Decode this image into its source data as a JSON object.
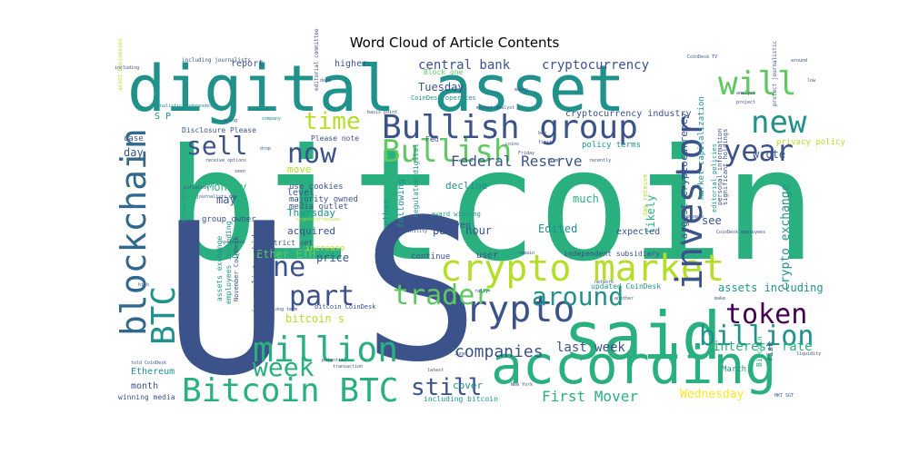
{
  "chart_data": {
    "type": "wordcloud",
    "title": "Word Cloud of Article Contents",
    "palette": [
      "#440154",
      "#3b528b",
      "#21918c",
      "#2ab07f",
      "#5ec962",
      "#b5de2b",
      "#fde725"
    ],
    "words": [
      {
        "text": "bitcoin",
        "weight": 100,
        "color": "#2ab07f"
      },
      {
        "text": "U",
        "weight": 95,
        "color": "#3b528b"
      },
      {
        "text": "S",
        "weight": 95,
        "color": "#3b528b"
      },
      {
        "text": "digital asset",
        "weight": 60,
        "color": "#21918c"
      },
      {
        "text": "according",
        "weight": 55,
        "color": "#2ab07f"
      },
      {
        "text": "said",
        "weight": 54,
        "color": "#2ab07f"
      },
      {
        "text": "blockchain",
        "weight": 42,
        "color": "#31688e"
      },
      {
        "text": "crypto market",
        "weight": 40,
        "color": "#b5de2b"
      },
      {
        "text": "Bullish group",
        "weight": 38,
        "color": "#3b528b"
      },
      {
        "text": "crypto",
        "weight": 36,
        "color": "#3b528b"
      },
      {
        "text": "investor",
        "weight": 36,
        "color": "#3b528b"
      },
      {
        "text": "Bitcoin BTC",
        "weight": 35,
        "color": "#2ab07f"
      },
      {
        "text": "million",
        "weight": 34,
        "color": "#2ab07f"
      },
      {
        "text": "will",
        "weight": 33,
        "color": "#5ec962"
      },
      {
        "text": "token",
        "weight": 30,
        "color": "#440154"
      },
      {
        "text": "new",
        "weight": 30,
        "color": "#21918c"
      },
      {
        "text": "year",
        "weight": 30,
        "color": "#3b528b"
      },
      {
        "text": "Bullish",
        "weight": 30,
        "color": "#5ec962"
      },
      {
        "text": "BTC",
        "weight": 29,
        "color": "#21918c"
      },
      {
        "text": "around",
        "weight": 28,
        "color": "#21918c"
      },
      {
        "text": "trader",
        "weight": 28,
        "color": "#5ec962"
      },
      {
        "text": "part",
        "weight": 28,
        "color": "#3b528b"
      },
      {
        "text": "billion",
        "weight": 28,
        "color": "#21918c"
      },
      {
        "text": "one",
        "weight": 27,
        "color": "#3b528b"
      },
      {
        "text": "now",
        "weight": 27,
        "color": "#3b528b"
      },
      {
        "text": "week",
        "weight": 26,
        "color": "#2ab07f"
      },
      {
        "text": "still",
        "weight": 24,
        "color": "#3b528b"
      },
      {
        "text": "sell",
        "weight": 24,
        "color": "#3b528b"
      },
      {
        "text": "time",
        "weight": 23,
        "color": "#b5de2b"
      },
      {
        "text": "companies",
        "weight": 18,
        "color": "#3b528b"
      },
      {
        "text": "First Mover",
        "weight": 16,
        "color": "#2ab07f"
      },
      {
        "text": "interest rate",
        "weight": 14,
        "color": "#2ab07f"
      },
      {
        "text": "last week",
        "weight": 14,
        "color": "#3b528b"
      },
      {
        "text": "crypto exchange",
        "weight": 13,
        "color": "#21918c"
      },
      {
        "text": "cryptocurrency",
        "weight": 14,
        "color": "#3b528b"
      },
      {
        "text": "central bank",
        "weight": 14,
        "color": "#3b528b"
      },
      {
        "text": "Federal Reserve",
        "weight": 14,
        "color": "#3b528b"
      },
      {
        "text": "largest cryptocurrency",
        "weight": 12,
        "color": "#3b528b"
      },
      {
        "text": "Wednesday",
        "weight": 13,
        "color": "#fde725"
      },
      {
        "text": "assets including",
        "weight": 12,
        "color": "#21918c"
      },
      {
        "text": "Tuesday",
        "weight": 12,
        "color": "#3b528b"
      },
      {
        "text": "Monday",
        "weight": 12,
        "color": "#2ab07f"
      },
      {
        "text": "Thursday",
        "weight": 11,
        "color": "#21918c"
      },
      {
        "text": "past hour",
        "weight": 12,
        "color": "#3b528b"
      },
      {
        "text": "decline",
        "weight": 11,
        "color": "#21918c"
      },
      {
        "text": "Edited",
        "weight": 12,
        "color": "#21918c"
      },
      {
        "text": "much",
        "weight": 12,
        "color": "#2ab07f"
      },
      {
        "text": "likely",
        "weight": 12,
        "color": "#2ab07f"
      },
      {
        "text": "expected",
        "weight": 10,
        "color": "#3b528b"
      },
      {
        "text": "see",
        "weight": 12,
        "color": "#3b528b"
      },
      {
        "text": "wrote",
        "weight": 12,
        "color": "#3b528b"
      },
      {
        "text": "price",
        "weight": 12,
        "color": "#3b528b"
      },
      {
        "text": "Ether ETH",
        "weight": 11,
        "color": "#5ec962"
      },
      {
        "text": "bitcoin s",
        "weight": 11,
        "color": "#b5de2b"
      },
      {
        "text": "cover",
        "weight": 11,
        "color": "#21918c"
      },
      {
        "text": "cryptocurrency industry",
        "weight": 10,
        "color": "#3b528b"
      },
      {
        "text": "policy terms",
        "weight": 9,
        "color": "#21918c"
      },
      {
        "text": "privacy policy",
        "weight": 9,
        "color": "#b5de2b"
      },
      {
        "text": "market capitalization",
        "weight": 9,
        "color": "#21918c"
      },
      {
        "text": "Ethereum",
        "weight": 10,
        "color": "#21918c"
      },
      {
        "text": "month",
        "weight": 10,
        "color": "#3b528b"
      },
      {
        "text": "winning media",
        "weight": 8,
        "color": "#3b528b"
      },
      {
        "text": "March",
        "weight": 9,
        "color": "#21918c"
      },
      {
        "text": "risk",
        "weight": 9,
        "color": "#3b528b"
      },
      {
        "text": "even",
        "weight": 10,
        "color": "#3b528b"
      },
      {
        "text": "following",
        "weight": 10,
        "color": "#21918c"
      },
      {
        "text": "ether",
        "weight": 10,
        "color": "#21918c"
      },
      {
        "text": "acquired",
        "weight": 11,
        "color": "#3b528b"
      },
      {
        "text": "may",
        "weight": 12,
        "color": "#3b528b"
      },
      {
        "text": "day",
        "weight": 12,
        "color": "#3b528b"
      },
      {
        "text": "case",
        "weight": 9,
        "color": "#3b528b"
      },
      {
        "text": "level",
        "weight": 10,
        "color": "#3b528b"
      },
      {
        "text": "move",
        "weight": 11,
        "color": "#b5de2b"
      },
      {
        "text": "Bitcoin",
        "weight": 8,
        "color": "#2ab07f"
      },
      {
        "text": "report",
        "weight": 10,
        "color": "#3b528b"
      },
      {
        "text": "higher",
        "weight": 10,
        "color": "#3b528b"
      },
      {
        "text": "user",
        "weight": 10,
        "color": "#3b528b"
      },
      {
        "text": "continue",
        "weight": 9,
        "color": "#3b528b"
      },
      {
        "text": "increase",
        "weight": 9,
        "color": "#b5de2b"
      },
      {
        "text": "variety",
        "weight": 9,
        "color": "#2ab07f"
      },
      {
        "text": "strict set",
        "weight": 8,
        "color": "#3b528b"
      },
      {
        "text": "media outlet",
        "weight": 9,
        "color": "#3b528b"
      },
      {
        "text": "majority owned",
        "weight": 9,
        "color": "#3b528b"
      },
      {
        "text": "use cookies",
        "weight": 9,
        "color": "#3b528b"
      },
      {
        "text": "group owner",
        "weight": 9,
        "color": "#3b528b"
      },
      {
        "text": "Please note",
        "weight": 8,
        "color": "#3b528b"
      },
      {
        "text": "Disclosure Please",
        "weight": 8,
        "color": "#3b528b"
      },
      {
        "text": "Block one",
        "weight": 8,
        "color": "#5ec962"
      },
      {
        "text": "CoinDesk operates",
        "weight": 7,
        "color": "#21918c"
      },
      {
        "text": "independent subsidiary",
        "weight": 8,
        "color": "#3b528b"
      },
      {
        "text": "updated CoinDesk",
        "weight": 8,
        "color": "#21918c"
      },
      {
        "text": "including bitcoin",
        "weight": 8,
        "color": "#21918c"
      },
      {
        "text": "journalists abide",
        "weight": 9,
        "color": "#3b528b"
      },
      {
        "text": "employees including",
        "weight": 8,
        "color": "#21918c"
      },
      {
        "text": "assets exchange",
        "weight": 8,
        "color": "#21918c"
      },
      {
        "text": "November CoinDesk",
        "weight": 7,
        "color": "#3b528b"
      },
      {
        "text": "bitcoin CoinDesk",
        "weight": 7,
        "color": "#3b528b"
      },
      {
        "text": "regulated digital",
        "weight": 8,
        "color": "#21918c"
      },
      {
        "text": "award winning",
        "weight": 7,
        "color": "#21918c"
      },
      {
        "text": "day receive",
        "weight": 7,
        "color": "#b5de2b"
      },
      {
        "text": "editorial policies",
        "weight": 7,
        "color": "#21918c"
      },
      {
        "text": "personal information",
        "weight": 7,
        "color": "#3b528b"
      },
      {
        "text": "significant holdings",
        "weight": 7,
        "color": "#3b528b"
      },
      {
        "text": "protect journalistic",
        "weight": 6,
        "color": "#3b528b"
      },
      {
        "text": "S P",
        "weight": 10,
        "color": "#21918c"
      },
      {
        "text": "Fed",
        "weight": 8,
        "color": "#3b528b"
      },
      {
        "text": "asset businesses",
        "weight": 6,
        "color": "#b5de2b"
      },
      {
        "text": "journalistic independence",
        "weight": 5,
        "color": "#21918c"
      },
      {
        "text": "editorial committee",
        "weight": 6,
        "color": "#3b528b"
      },
      {
        "text": "including journalists",
        "weight": 6,
        "color": "#3b528b"
      },
      {
        "text": "receive options",
        "weight": 5,
        "color": "#3b528b"
      },
      {
        "text": "journalists may",
        "weight": 5,
        "color": "#3b528b"
      },
      {
        "text": "inflation",
        "weight": 5,
        "color": "#3b528b"
      },
      {
        "text": "bitcoin price",
        "weight": 5,
        "color": "#21918c"
      },
      {
        "text": "cryptocurrencies",
        "weight": 5,
        "color": "#b5de2b"
      },
      {
        "text": "company",
        "weight": 5,
        "color": "#21918c"
      },
      {
        "text": "CoinDesk TV",
        "weight": 5,
        "color": "#3b528b"
      },
      {
        "text": "CoinDesk employees",
        "weight": 5,
        "color": "#3b528b"
      },
      {
        "text": "volatility",
        "weight": 5,
        "color": "#3b528b"
      },
      {
        "text": "long term",
        "weight": 5,
        "color": "#3b528b"
      },
      {
        "text": "New York",
        "weight": 5,
        "color": "#3b528b"
      },
      {
        "text": "transaction",
        "weight": 5,
        "color": "#3b528b"
      },
      {
        "text": "potential",
        "weight": 5,
        "color": "#3b528b"
      },
      {
        "text": "told CoinDesk",
        "weight": 5,
        "color": "#3b528b"
      },
      {
        "text": "liquidity",
        "weight": 5,
        "color": "#3b528b"
      },
      {
        "text": "HKT SGT",
        "weight": 5,
        "color": "#3b528b"
      },
      {
        "text": "analyst",
        "weight": 5,
        "color": "#3b528b"
      },
      {
        "text": "project",
        "weight": 5,
        "color": "#3b528b"
      },
      {
        "text": "network",
        "weight": 5,
        "color": "#3b528b"
      },
      {
        "text": "recently",
        "weight": 5,
        "color": "#3b528b"
      },
      {
        "text": "people",
        "weight": 5,
        "color": "#3b528b"
      },
      {
        "text": "market analyst",
        "weight": 5,
        "color": "#3b528b"
      },
      {
        "text": "basis point",
        "weight": 5,
        "color": "#3b528b"
      },
      {
        "text": "rally",
        "weight": 5,
        "color": "#3b528b"
      },
      {
        "text": "protocol",
        "weight": 5,
        "color": "#3b528b"
      },
      {
        "text": "April",
        "weight": 5,
        "color": "#3b528b"
      },
      {
        "text": "June",
        "weight": 5,
        "color": "#3b528b"
      },
      {
        "text": "first",
        "weight": 5,
        "color": "#3b528b"
      },
      {
        "text": "money",
        "weight": 5,
        "color": "#3b528b"
      },
      {
        "text": "remain",
        "weight": 5,
        "color": "#3b528b"
      },
      {
        "text": "coins",
        "weight": 5,
        "color": "#3b528b"
      },
      {
        "text": "high",
        "weight": 5,
        "color": "#3b528b"
      },
      {
        "text": "going",
        "weight": 5,
        "color": "#3b528b"
      },
      {
        "text": "seen",
        "weight": 5,
        "color": "#3b528b"
      },
      {
        "text": "drop",
        "weight": 5,
        "color": "#3b528b"
      },
      {
        "text": "data",
        "weight": 5,
        "color": "#3b528b"
      },
      {
        "text": "latest",
        "weight": 5,
        "color": "#3b528b"
      },
      {
        "text": "around",
        "weight": 5,
        "color": "#3b528b"
      },
      {
        "text": "buy",
        "weight": 5,
        "color": "#3b528b"
      },
      {
        "text": "firm",
        "weight": 5,
        "color": "#3b528b"
      },
      {
        "text": "low",
        "weight": 5,
        "color": "#3b528b"
      },
      {
        "text": "including",
        "weight": 5,
        "color": "#3b528b"
      },
      {
        "text": "make",
        "weight": 5,
        "color": "#3b528b"
      },
      {
        "text": "another",
        "weight": 5,
        "color": "#3b528b"
      },
      {
        "text": "Friday",
        "weight": 5,
        "color": "#3b528b"
      }
    ]
  }
}
